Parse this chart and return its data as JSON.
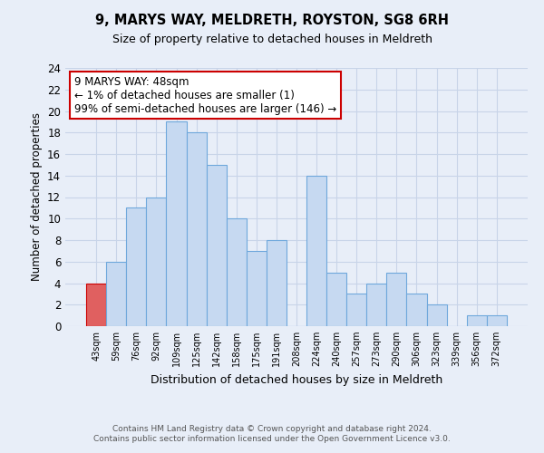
{
  "title": "9, MARYS WAY, MELDRETH, ROYSTON, SG8 6RH",
  "subtitle": "Size of property relative to detached houses in Meldreth",
  "xlabel": "Distribution of detached houses by size in Meldreth",
  "ylabel": "Number of detached properties",
  "bar_labels": [
    "43sqm",
    "59sqm",
    "76sqm",
    "92sqm",
    "109sqm",
    "125sqm",
    "142sqm",
    "158sqm",
    "175sqm",
    "191sqm",
    "208sqm",
    "224sqm",
    "240sqm",
    "257sqm",
    "273sqm",
    "290sqm",
    "306sqm",
    "323sqm",
    "339sqm",
    "356sqm",
    "372sqm"
  ],
  "bar_values": [
    4,
    6,
    11,
    12,
    19,
    18,
    15,
    10,
    7,
    8,
    0,
    14,
    5,
    3,
    4,
    5,
    3,
    2,
    0,
    1,
    1
  ],
  "bar_color": "#c6d9f1",
  "bar_edge_color": "#6fa8dc",
  "highlight_bar_index": 0,
  "highlight_bar_color": "#e06060",
  "highlight_bar_edge": "#cc0000",
  "ylim": [
    0,
    24
  ],
  "yticks": [
    0,
    2,
    4,
    6,
    8,
    10,
    12,
    14,
    16,
    18,
    20,
    22,
    24
  ],
  "annotation_text": "9 MARYS WAY: 48sqm\n← 1% of detached houses are smaller (1)\n99% of semi-detached houses are larger (146) →",
  "annotation_box_color": "#ffffff",
  "annotation_box_edge": "#cc0000",
  "footer_line1": "Contains HM Land Registry data © Crown copyright and database right 2024.",
  "footer_line2": "Contains public sector information licensed under the Open Government Licence v3.0.",
  "grid_color": "#c8d4e8",
  "background_color": "#e8eef8"
}
